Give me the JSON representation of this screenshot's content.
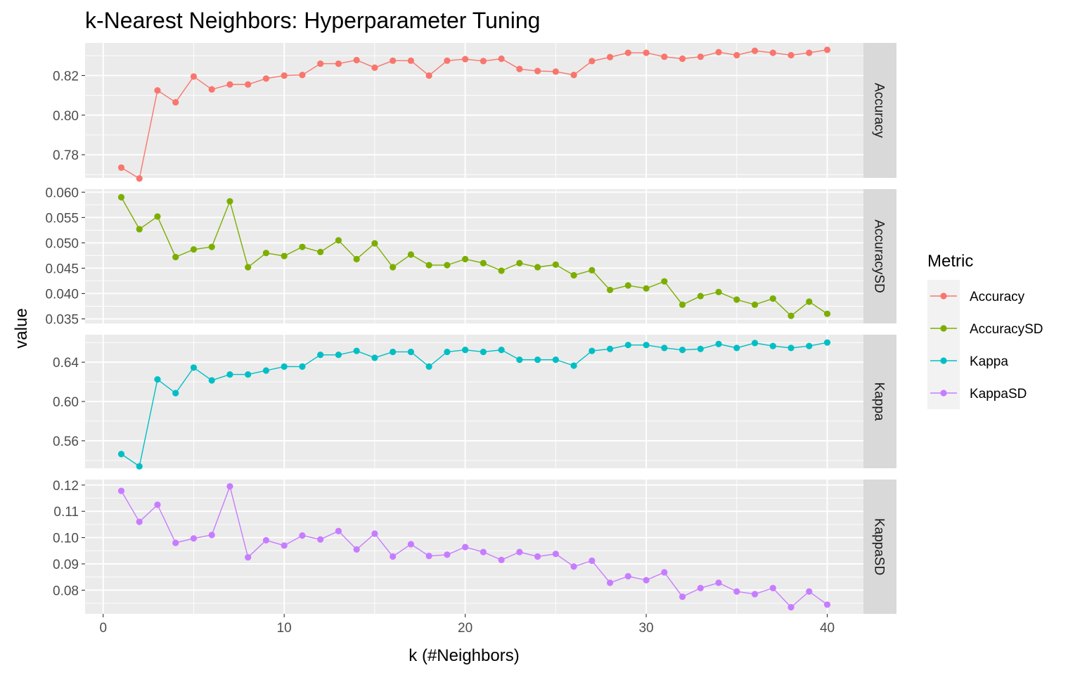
{
  "chart_data": {
    "type": "line",
    "title": "k-Nearest Neighbors: Hyperparameter Tuning",
    "xlabel": "k (#Neighbors)",
    "ylabel": "value",
    "x": [
      1,
      2,
      3,
      4,
      5,
      6,
      7,
      8,
      9,
      10,
      11,
      12,
      13,
      14,
      15,
      16,
      17,
      18,
      19,
      20,
      21,
      22,
      23,
      24,
      25,
      26,
      27,
      28,
      29,
      30,
      31,
      32,
      33,
      34,
      35,
      36,
      37,
      38,
      39,
      40
    ],
    "xlim": [
      -1,
      42
    ],
    "xticks": [
      0,
      10,
      20,
      30,
      40
    ],
    "xtick_labels": [
      "0",
      "10",
      "20",
      "30",
      "40"
    ],
    "legend": {
      "title": "Metric",
      "position": "right"
    },
    "grid": true,
    "facets": "rows, free y scales",
    "series": [
      {
        "name": "Accuracy",
        "color": "#F8766D",
        "ylim": [
          0.7683,
          0.8365
        ],
        "yticks": [
          0.78,
          0.8,
          0.82
        ],
        "ytick_labels": [
          "0.78",
          "0.80",
          "0.82"
        ],
        "values": [
          0.7735,
          0.768,
          0.8125,
          0.8065,
          0.8195,
          0.813,
          0.8155,
          0.8155,
          0.8185,
          0.82,
          0.8203,
          0.826,
          0.826,
          0.8278,
          0.824,
          0.8275,
          0.8275,
          0.82,
          0.8275,
          0.8283,
          0.8273,
          0.8285,
          0.8233,
          0.8223,
          0.822,
          0.8203,
          0.8273,
          0.8293,
          0.8315,
          0.8315,
          0.8295,
          0.8285,
          0.8295,
          0.8318,
          0.8303,
          0.8325,
          0.8315,
          0.8303,
          0.8315,
          0.833
        ]
      },
      {
        "name": "AccuracySD",
        "color": "#7CAE00",
        "ylim": [
          0.0341,
          0.0606
        ],
        "yticks": [
          0.035,
          0.04,
          0.045,
          0.05,
          0.055,
          0.06
        ],
        "ytick_labels": [
          "0.035",
          "0.040",
          "0.045",
          "0.050",
          "0.055",
          "0.060"
        ],
        "values": [
          0.059,
          0.0527,
          0.0552,
          0.0472,
          0.0487,
          0.0492,
          0.0582,
          0.0452,
          0.048,
          0.0474,
          0.0492,
          0.0482,
          0.0505,
          0.0468,
          0.0499,
          0.0452,
          0.0477,
          0.0456,
          0.0456,
          0.0468,
          0.046,
          0.0445,
          0.046,
          0.0452,
          0.0457,
          0.0436,
          0.0446,
          0.0407,
          0.0416,
          0.041,
          0.0424,
          0.0378,
          0.0395,
          0.0403,
          0.0388,
          0.0378,
          0.039,
          0.0356,
          0.0384,
          0.036
        ]
      },
      {
        "name": "Kappa",
        "color": "#00BFC4",
        "ylim": [
          0.532,
          0.668
        ],
        "yticks": [
          0.56,
          0.6,
          0.64
        ],
        "ytick_labels": [
          "0.56",
          "0.60",
          "0.64"
        ],
        "values": [
          0.5465,
          0.534,
          0.6225,
          0.6085,
          0.6345,
          0.6215,
          0.6275,
          0.6275,
          0.6315,
          0.6355,
          0.6355,
          0.6475,
          0.6475,
          0.6515,
          0.6445,
          0.6505,
          0.6505,
          0.6355,
          0.6505,
          0.6525,
          0.6505,
          0.6525,
          0.6425,
          0.6425,
          0.6425,
          0.6365,
          0.6515,
          0.6535,
          0.6575,
          0.6575,
          0.6545,
          0.6525,
          0.6535,
          0.6585,
          0.6545,
          0.6595,
          0.6565,
          0.6545,
          0.6565,
          0.66
        ]
      },
      {
        "name": "KappaSD",
        "color": "#C77CFF",
        "ylim": [
          0.071,
          0.1221
        ],
        "yticks": [
          0.08,
          0.09,
          0.1,
          0.11,
          0.12
        ],
        "ytick_labels": [
          "0.08",
          "0.09",
          "0.10",
          "0.11",
          "0.12"
        ],
        "values": [
          0.1178,
          0.106,
          0.1125,
          0.098,
          0.0997,
          0.101,
          0.1195,
          0.0925,
          0.099,
          0.097,
          0.1008,
          0.0993,
          0.1025,
          0.0955,
          0.1015,
          0.0928,
          0.0975,
          0.093,
          0.0935,
          0.0964,
          0.0945,
          0.0915,
          0.0945,
          0.0928,
          0.0938,
          0.089,
          0.0912,
          0.0828,
          0.0853,
          0.0838,
          0.0868,
          0.0775,
          0.0808,
          0.0828,
          0.0795,
          0.0785,
          0.0808,
          0.0735,
          0.0795,
          0.0745
        ]
      }
    ]
  }
}
